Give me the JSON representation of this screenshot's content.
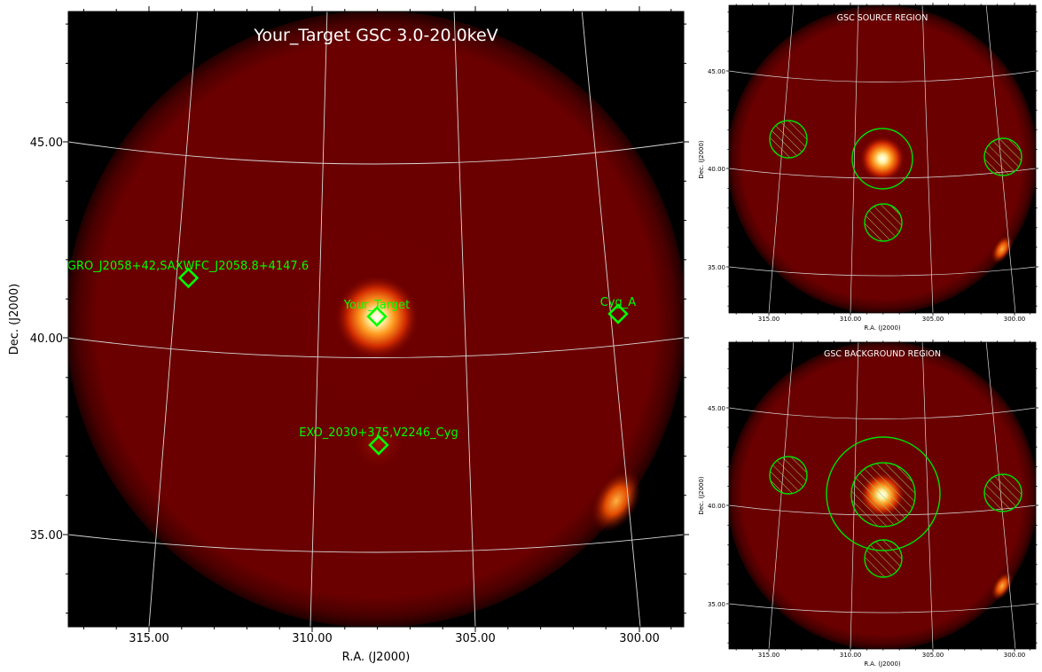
{
  "chart_data": [
    {
      "type": "heatmap",
      "title": "Your_Target GSC 3.0-20.0keV",
      "xlabel": "R.A. (J2000)",
      "ylabel": "Dec. (J2000)",
      "x_ticks": [
        "315.00",
        "310.00",
        "305.00",
        "300.00"
      ],
      "y_ticks": [
        "45.00",
        "40.00",
        "35.00"
      ],
      "colormap": "gist_heat",
      "grid": true,
      "sources": [
        {
          "name": "GRO_J2058+42,SAXWFC_J2058.8+4147.6",
          "ra": 313.7,
          "dec": 41.6
        },
        {
          "name": "Your_Target",
          "ra": 308.0,
          "dec": 40.6
        },
        {
          "name": "Cyg_A",
          "ra": 299.9,
          "dec": 40.7
        },
        {
          "name": "EXO_2030+375,V2246_Cyg",
          "ra": 307.9,
          "dec": 37.6
        }
      ]
    },
    {
      "type": "heatmap",
      "title": "GSC SOURCE REGION",
      "xlabel": "R.A. (J2000)",
      "ylabel": "Dec. (J2000)",
      "x_ticks": [
        "315.00",
        "310.00",
        "305.00",
        "300.00"
      ],
      "y_ticks": [
        "45.00",
        "40.00",
        "35.00"
      ],
      "regions": "source circle around Your_Target; hatched exclusion circles around catalog sources"
    },
    {
      "type": "heatmap",
      "title": "GSC BACKGROUND REGION",
      "xlabel": "R.A. (J2000)",
      "ylabel": "Dec. (J2000)",
      "x_ticks": [
        "315.00",
        "310.00",
        "305.00",
        "300.00"
      ],
      "y_ticks": [
        "45.00",
        "40.00",
        "35.00"
      ],
      "regions": "background annulus around Your_Target; hatched exclusion circles around catalog sources"
    }
  ],
  "colors": {
    "background_field": "#6e0000",
    "marker": "#00ff00",
    "grid": "#d8d8d8"
  }
}
